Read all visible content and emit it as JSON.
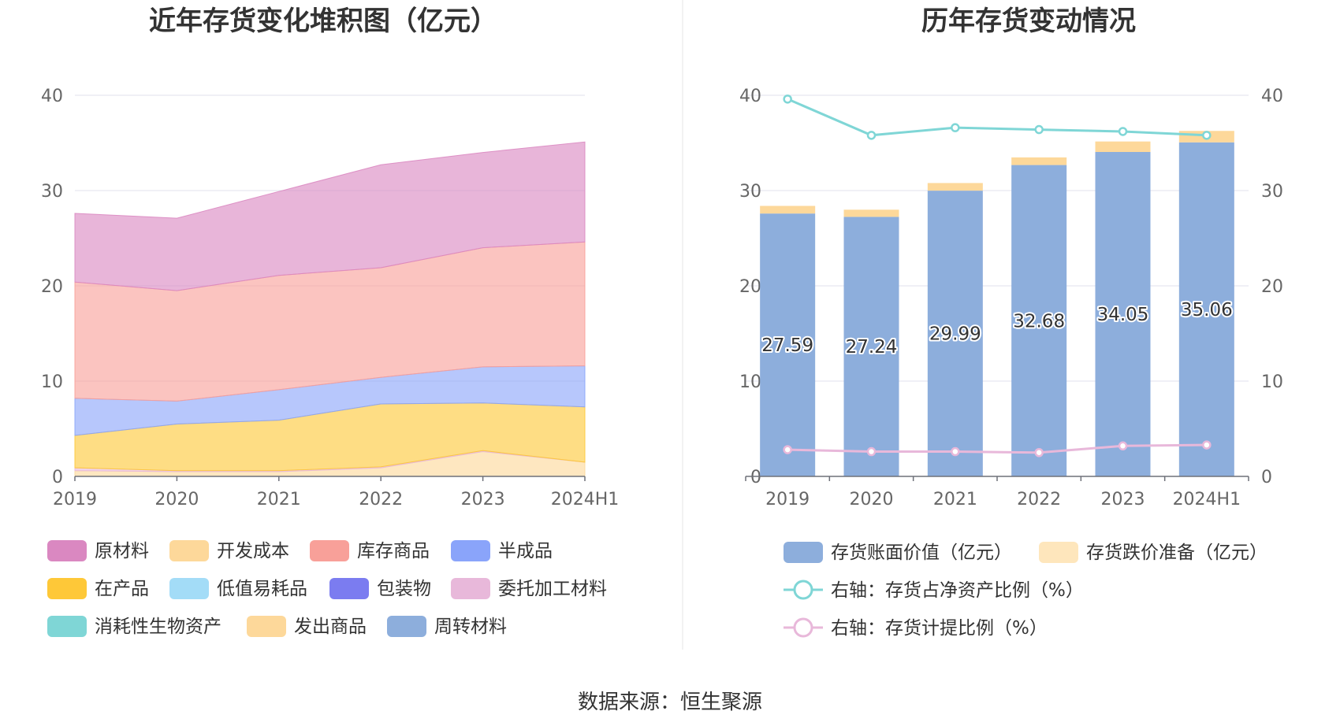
{
  "source_label": "数据来源：恒生聚源",
  "chart_data": [
    {
      "type": "area",
      "stacked": true,
      "title": "近年存货变化堆积图（亿元）",
      "categories": [
        "2019",
        "2020",
        "2021",
        "2022",
        "2023",
        "2024H1"
      ],
      "yticks": [
        "0",
        "10",
        "20",
        "30",
        "40"
      ],
      "ylim": [
        0,
        40
      ],
      "grid": true,
      "legend_position": "bottom",
      "series": [
        {
          "name": "原材料",
          "color": "#da88c1",
          "values": [
            7.2,
            7.6,
            8.8,
            10.8,
            10.0,
            10.5
          ]
        },
        {
          "name": "开发成本",
          "color": "#fdd89a",
          "values": [
            0,
            0,
            0,
            0,
            0,
            0
          ]
        },
        {
          "name": "库存商品",
          "color": "#f8a099",
          "values": [
            12.2,
            11.6,
            12.0,
            11.5,
            12.5,
            13.0
          ]
        },
        {
          "name": "半成品",
          "color": "#8aa4fa",
          "values": [
            3.9,
            2.4,
            3.2,
            2.8,
            3.8,
            4.3
          ]
        },
        {
          "name": "在产品",
          "color": "#fec838",
          "values": [
            3.4,
            4.9,
            5.3,
            6.6,
            5.0,
            5.8
          ]
        },
        {
          "name": "低值易耗品",
          "color": "#a3dcf7",
          "values": [
            0,
            0,
            0,
            0,
            0,
            0
          ]
        },
        {
          "name": "包装物",
          "color": "#7b7cf0",
          "values": [
            0,
            0,
            0,
            0,
            0,
            0
          ]
        },
        {
          "name": "委托加工材料",
          "color": "#e8b8da",
          "values": [
            0.3,
            0.1,
            0.1,
            0.1,
            0.1,
            0
          ]
        },
        {
          "name": "消耗性生物资产",
          "color": "#7fd6d6",
          "values": [
            0,
            0,
            0,
            0,
            0,
            0
          ]
        },
        {
          "name": "发出商品",
          "color": "#fdd89a",
          "values": [
            0.6,
            0.5,
            0.5,
            0.9,
            2.6,
            1.5
          ]
        },
        {
          "name": "周转材料",
          "color": "#8daedc",
          "values": [
            0,
            0,
            0,
            0,
            0,
            0
          ]
        }
      ]
    },
    {
      "type": "bar",
      "stacked": true,
      "title": "历年存货变动情况",
      "categories": [
        "2019",
        "2020",
        "2021",
        "2022",
        "2023",
        "2024H1"
      ],
      "yticks": [
        "0",
        "10",
        "20",
        "30",
        "40"
      ],
      "y2ticks": [
        "0",
        "10",
        "20",
        "30",
        "40"
      ],
      "ylim": [
        0,
        40
      ],
      "y2lim": [
        0,
        40
      ],
      "grid": true,
      "legend_position": "bottom",
      "series": [
        {
          "name": "存货账面价值（亿元）",
          "color": "#8daedc",
          "values": [
            27.59,
            27.24,
            29.99,
            32.68,
            34.05,
            35.06
          ],
          "labels": [
            "27.59",
            "27.24",
            "29.99",
            "32.68",
            "34.05",
            "35.06"
          ]
        },
        {
          "name": "存货跌价准备（亿元）",
          "color": "#fee6bc",
          "legend_color": "#fee6bc",
          "bar_color": "#fdd89a",
          "values": [
            0.8,
            0.75,
            0.8,
            0.8,
            1.1,
            1.2
          ]
        },
        {
          "name": "右轴：存货占净资产比例（%）",
          "color": "#7fd6d6",
          "type": "line",
          "axis": "right",
          "values": [
            39.6,
            35.8,
            36.6,
            36.4,
            36.2,
            35.8
          ]
        },
        {
          "name": "右轴：存货计提比例（%）",
          "color": "#e8b8da",
          "type": "line",
          "axis": "right",
          "values": [
            2.8,
            2.6,
            2.6,
            2.5,
            3.2,
            3.3
          ]
        }
      ]
    }
  ]
}
